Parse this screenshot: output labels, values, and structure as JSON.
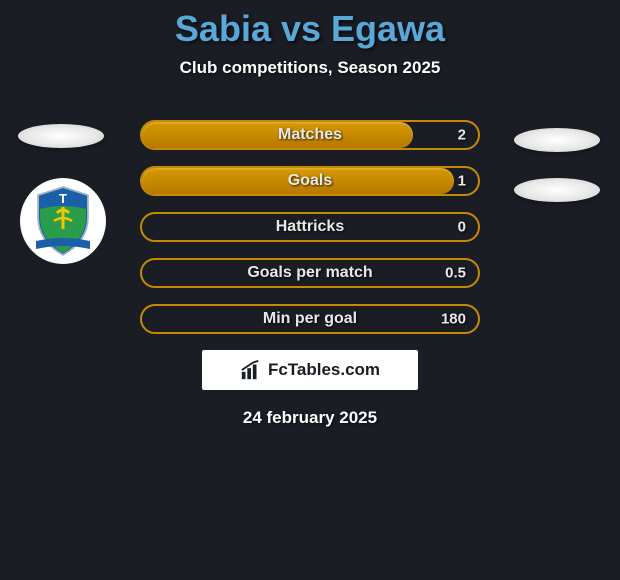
{
  "title": "Sabia vs Egawa",
  "subtitle": "Club competitions, Season 2025",
  "date": "24 february 2025",
  "colors": {
    "background": "#1a1d24",
    "title_color": "#5aa8d8",
    "text_color": "#ffffff",
    "bar_border": "#c68a00",
    "bar_fill_top": "#d69a00",
    "bar_fill_bottom": "#b87800",
    "badge_bg": "#ffffff"
  },
  "stats": [
    {
      "label": "Matches",
      "value": "2",
      "fill_percent": 81
    },
    {
      "label": "Goals",
      "value": "1",
      "fill_percent": 93
    },
    {
      "label": "Hattricks",
      "value": "0",
      "fill_percent": 0
    },
    {
      "label": "Goals per match",
      "value": "0.5",
      "fill_percent": 0
    },
    {
      "label": "Min per goal",
      "value": "180",
      "fill_percent": 0
    }
  ],
  "branding": {
    "text": "FcTables.com"
  },
  "badge": {
    "shield_top_color": "#1a5fa8",
    "shield_bottom_color": "#2a9d4a",
    "ribbon_color": "#1a5fa8",
    "letter": "T"
  }
}
